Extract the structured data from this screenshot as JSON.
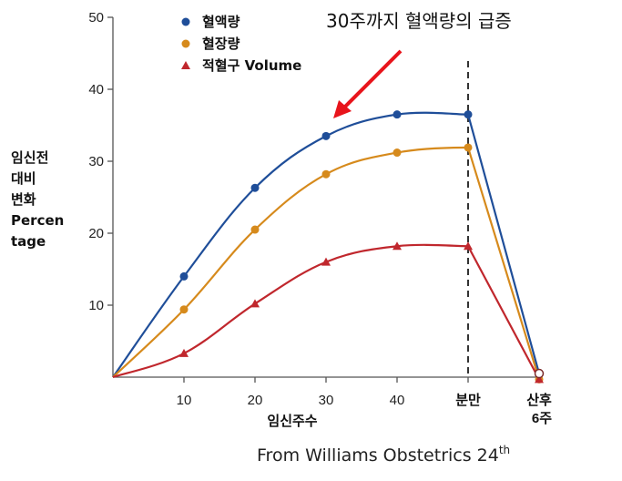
{
  "chart_data": {
    "type": "line",
    "categories": [
      "0",
      "10",
      "20",
      "30",
      "40",
      "분만",
      "산후 6주"
    ],
    "x": [
      0,
      10,
      20,
      30,
      40,
      50,
      60
    ],
    "xlabel": "임신주수",
    "ylabel_lines": [
      "임신전",
      "대비",
      "변화",
      "Percen",
      "tage"
    ],
    "ylim": [
      0,
      50
    ],
    "yticks": [
      10,
      20,
      30,
      40,
      50
    ],
    "xticks": [
      {
        "x": 10,
        "label": "10"
      },
      {
        "x": 20,
        "label": "20"
      },
      {
        "x": 30,
        "label": "30"
      },
      {
        "x": 40,
        "label": "40"
      },
      {
        "x": 50,
        "label": "분만"
      },
      {
        "x": 60,
        "label": "산후",
        "label2": "6주"
      }
    ],
    "series": [
      {
        "name": "혈액량",
        "color": "#1f4e99",
        "marker": "circle",
        "x": [
          0,
          10,
          20,
          30,
          40,
          50,
          60
        ],
        "values": [
          0,
          14,
          26.3,
          33.5,
          36.5,
          36.5,
          0.5
        ]
      },
      {
        "name": "혈장량",
        "color": "#d68a1c",
        "marker": "circle",
        "x": [
          0,
          10,
          20,
          30,
          40,
          50,
          60
        ],
        "values": [
          0,
          9.4,
          20.5,
          28.2,
          31.2,
          31.9,
          -0.3
        ]
      },
      {
        "name": "적혈구 Volume",
        "color": "#c0272d",
        "marker": "triangle",
        "x": [
          0,
          10,
          20,
          30,
          40,
          50,
          60
        ],
        "values": [
          0,
          3.3,
          10.2,
          16,
          18.2,
          18.2,
          -0.3
        ]
      }
    ],
    "vline_x": 50,
    "annotation": {
      "text": "30주까지 혈액량의 급증",
      "arrow_color": "#e8141b"
    },
    "source": {
      "text": "From Williams Obstetrics 24",
      "sup": "th"
    }
  }
}
